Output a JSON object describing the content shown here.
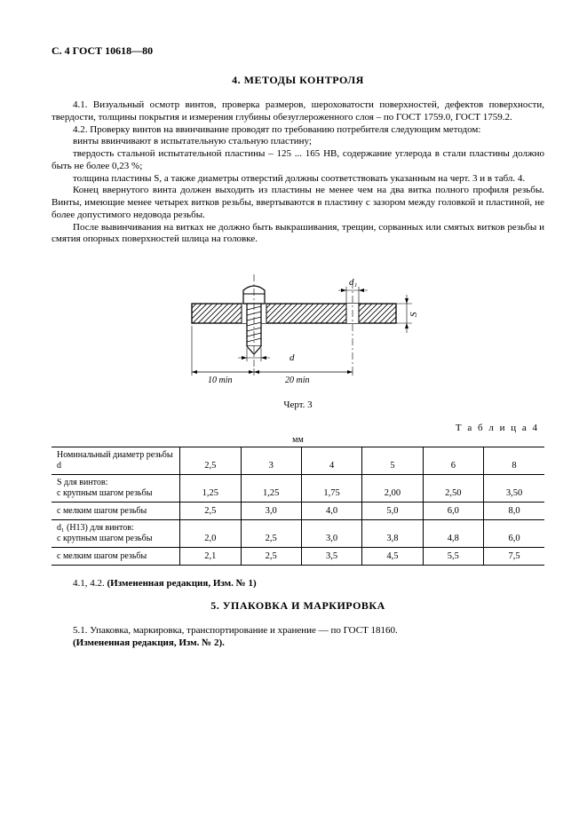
{
  "header": "С. 4 ГОСТ 10618—80",
  "section4_title": "4.  МЕТОДЫ КОНТРОЛЯ",
  "p41": "4.1.  Визуальный осмотр винтов, проверка размеров, шероховатости поверхностей, дефектов поверхности, твердости, толщины покрытия и измерения глубины обезуглероженного слоя – по ГОСТ 1759.0, ГОСТ 1759.2.",
  "p42a": "4.2.  Проверку винтов на ввинчивание проводят по требованию потребителя следующим методом:",
  "p42b": "винты ввинчивают в испытательную стальную пластину;",
  "p42c": "твердость стальной испытательной пластины – 125 ... 165 НВ, содержание углерода в стали пластины должно быть не более 0,23 %;",
  "p42d": "толщина пластины S, а также диаметры отверстий должны соответствовать указанным на черт. 3 и в табл. 4.",
  "p42e": "Конец ввернутого винта должен выходить из пластины не менее чем на два витка полного профиля резьбы. Винты, имеющие менее четырех витков резьбы, ввертываются в пластину с зазором между головкой и пластиной, не более допустимого недовода резьбы.",
  "p42f": "После вывинчивания на витках не должно быть выкрашивания, трещин, сорванных или смятых витков резьбы и смятия опорных поверхностей шлица на головке.",
  "fig": {
    "caption": "Черт. 3",
    "d_label": "d",
    "d1_label": "d₁",
    "s_label": "S",
    "left_dim": "10 min",
    "right_dim": "20 min"
  },
  "table": {
    "label": "Т а б л и ц а  4",
    "unit": "мм",
    "row_headers": [
      "Номинальный диаметр резьбы  d",
      "S для винтов:\n   с крупным шагом резьбы",
      "   с мелким шагом резьбы",
      "d₁ (H13) для винтов:\n   с  крупным  шагом резьбы",
      "   с мелким шагом резьбы"
    ],
    "rows": [
      [
        "2,5",
        "3",
        "4",
        "5",
        "6",
        "8"
      ],
      [
        "1,25",
        "1,25",
        "1,75",
        "2,00",
        "2,50",
        "3,50"
      ],
      [
        "2,5",
        "3,0",
        "4,0",
        "5,0",
        "6,0",
        "8,0"
      ],
      [
        "2,0",
        "2,5",
        "3,0",
        "3,8",
        "4,8",
        "6,0"
      ],
      [
        "2,1",
        "2,5",
        "3,5",
        "4,5",
        "5,5",
        "7,5"
      ]
    ]
  },
  "p_after1": "4.1, 4.2.  (Измененная редакция, Изм. № 1)",
  "section5_title": "5.  УПАКОВКА И МАРКИРОВКА",
  "p51": "5.1.  Упаковка, маркировка, транспортирование и хранение — по ГОСТ 18160.",
  "p51b": "(Измененная редакция, Изм. № 2)."
}
